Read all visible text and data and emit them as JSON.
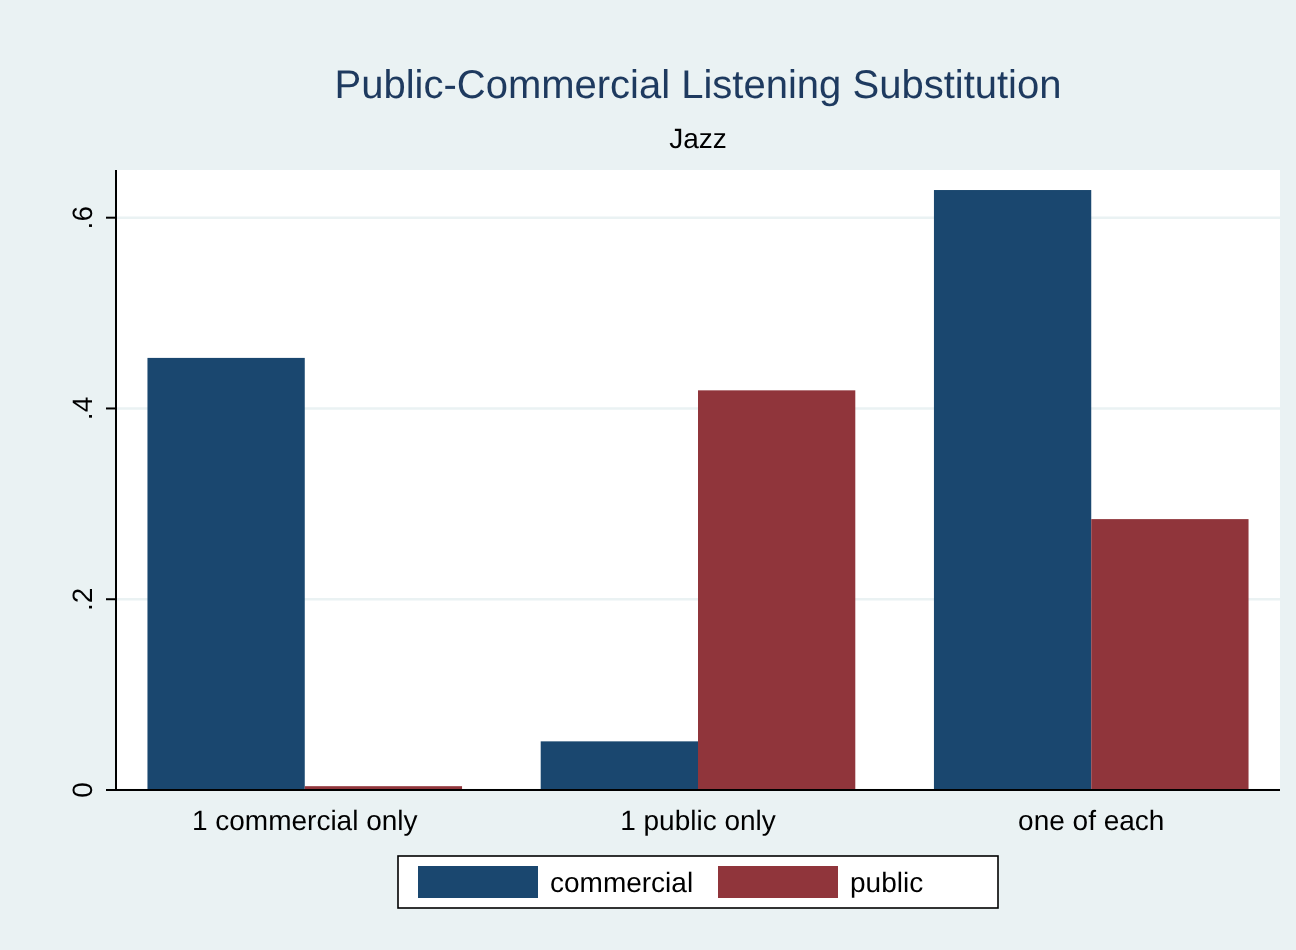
{
  "chart_data": {
    "type": "bar",
    "title": "Public-Commercial Listening Substitution",
    "subtitle": "Jazz",
    "categories": [
      "1 commercial only",
      "1 public only",
      "one of each"
    ],
    "series": [
      {
        "name": "commercial",
        "color": "#1a476f",
        "values": [
          0.453,
          0.051,
          0.629
        ]
      },
      {
        "name": "public",
        "color": "#90353b",
        "values": [
          0.004,
          0.419,
          0.284
        ]
      }
    ],
    "ylim": [
      0,
      0.65
    ],
    "yticks": [
      0,
      {
        "value": 0.2,
        "label": ".2"
      },
      {
        "value": 0.4,
        "label": ".4"
      },
      {
        "value": 0.6,
        "label": ".6"
      }
    ],
    "grid": "y",
    "legend": "bottom"
  }
}
